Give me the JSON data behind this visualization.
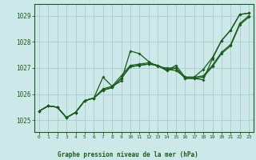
{
  "title": "Graphe pression niveau de la mer (hPa)",
  "bg_color": "#cce8e8",
  "grid_color": "#aacccc",
  "line_color": "#1a5c1a",
  "xlim": [
    -0.5,
    23.5
  ],
  "ylim": [
    1024.55,
    1029.45
  ],
  "yticks": [
    1025,
    1026,
    1027,
    1028,
    1029
  ],
  "xticks": [
    0,
    1,
    2,
    3,
    4,
    5,
    6,
    7,
    8,
    9,
    10,
    11,
    12,
    13,
    14,
    15,
    16,
    17,
    18,
    19,
    20,
    21,
    22,
    23
  ],
  "series_A": [
    1025.35,
    1025.55,
    1025.5,
    1025.1,
    1025.3,
    1025.75,
    1025.85,
    1026.65,
    1026.3,
    1026.5,
    1027.65,
    1027.55,
    1027.25,
    1027.05,
    1027.0,
    1027.0,
    1026.6,
    1026.6,
    1026.55,
    1027.35,
    1028.05,
    1028.45,
    1029.05,
    1029.1
  ],
  "series_B": [
    1025.35,
    1025.55,
    1025.5,
    1025.1,
    1025.3,
    1025.75,
    1025.85,
    1026.2,
    1026.3,
    1026.7,
    1027.1,
    1027.15,
    1027.2,
    1027.1,
    1026.95,
    1026.9,
    1026.65,
    1026.65,
    1026.7,
    1027.1,
    1027.6,
    1027.9,
    1028.7,
    1029.0
  ],
  "series_C": [
    1025.35,
    1025.55,
    1025.5,
    1025.1,
    1025.3,
    1025.75,
    1025.85,
    1026.15,
    1026.25,
    1026.6,
    1027.05,
    1027.1,
    1027.15,
    1027.1,
    1026.9,
    1027.0,
    1026.6,
    1026.6,
    1026.65,
    1027.05,
    1027.55,
    1027.85,
    1028.65,
    1028.95
  ],
  "series_D": [
    1025.35,
    1025.55,
    1025.5,
    1025.1,
    1025.3,
    1025.75,
    1025.85,
    1026.15,
    1026.25,
    1026.6,
    1027.05,
    1027.1,
    1027.15,
    1027.1,
    1026.9,
    1027.1,
    1026.65,
    1026.65,
    1026.95,
    1027.4,
    1028.05,
    1028.45,
    1029.05,
    1029.1
  ]
}
